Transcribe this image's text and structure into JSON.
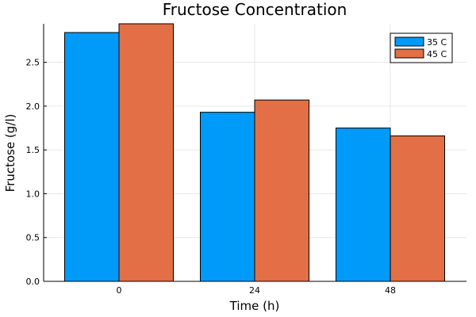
{
  "chart_data": {
    "type": "bar",
    "title": "Fructose Concentration",
    "xlabel": "Time (h)",
    "ylabel": "Fructose (g/l)",
    "categories": [
      "0",
      "24",
      "48"
    ],
    "series": [
      {
        "name": "35 C",
        "color": "#009af9",
        "values": [
          2.84,
          1.93,
          1.75
        ]
      },
      {
        "name": "45 C",
        "color": "#e26f46",
        "values": [
          2.94,
          2.07,
          1.66
        ]
      }
    ],
    "ylim": [
      0,
      2.94
    ],
    "yticks": [
      "0.0",
      "0.5",
      "1.0",
      "1.5",
      "2.0",
      "2.5"
    ],
    "grid": true,
    "legend_position": "top-right"
  }
}
